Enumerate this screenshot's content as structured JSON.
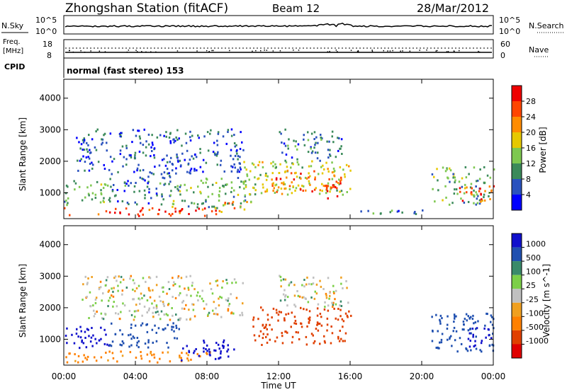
{
  "header": {
    "station": "Zhongshan Station (fitACF)",
    "beam": "Beam 12",
    "date": "28/Mar/2012"
  },
  "top_panels": {
    "nsky_label": "N.Sky",
    "nsearch_label": "N.Search",
    "freq_label_1": "Freq.",
    "freq_label_2": "[MHz]",
    "nave_label": "Nave",
    "cpid_label": "CPID",
    "cpid_value": "normal (fast stereo) 153",
    "noise_ticks_left": [
      "10^5",
      "10^0"
    ],
    "noise_ticks_right": [
      "10^5",
      "10^0"
    ],
    "freq_ticks_left": [
      "18",
      "8"
    ],
    "nave_ticks_right": [
      "60",
      "0"
    ]
  },
  "colors": {
    "power_scale": [
      "#0000ff",
      "#2a52be",
      "#3b8a5a",
      "#7ec850",
      "#e6c800",
      "#ff8c00",
      "#ff4500",
      "#ee0000"
    ],
    "velocity_scale": [
      "#1010cc",
      "#2050b0",
      "#3a8a6a",
      "#7ccf48",
      "#c0c0c0",
      "#f0a020",
      "#ff8000",
      "#e04000",
      "#e00000"
    ]
  },
  "chart_data": [
    {
      "type": "heatmap",
      "title": "Power",
      "xlabel": "Time UT",
      "ylabel": "Slant Range [km]",
      "xticks": [
        "00:00",
        "04:00",
        "08:00",
        "12:00",
        "16:00",
        "20:00",
        "00:00"
      ],
      "yticks": [
        "1000",
        "2000",
        "3000",
        "4000"
      ],
      "ylim": [
        180,
        4600
      ],
      "xlim_hours": [
        0,
        24
      ],
      "colorbar_label": "Power [dB]",
      "colorbar_ticks": [
        "4",
        "8",
        "12",
        "16",
        "20",
        "24",
        "28"
      ],
      "colorbar_range": [
        0,
        32
      ],
      "regions": [
        {
          "t0": 0.0,
          "t1": 8.5,
          "r0": 250,
          "r1": 520,
          "v": 28
        },
        {
          "t0": 8.5,
          "t1": 10.5,
          "r0": 300,
          "r1": 700,
          "v": 22
        },
        {
          "t0": 0.0,
          "t1": 2.5,
          "r0": 600,
          "r1": 1400,
          "v": 12
        },
        {
          "t0": 2.5,
          "t1": 6.0,
          "r0": 600,
          "r1": 1600,
          "v": 8
        },
        {
          "t0": 6.0,
          "t1": 10.5,
          "r0": 500,
          "r1": 1500,
          "v": 12
        },
        {
          "t0": 10.0,
          "t1": 16.0,
          "r0": 900,
          "r1": 2000,
          "v": 16
        },
        {
          "t0": 11.5,
          "t1": 15.5,
          "r0": 1000,
          "r1": 1700,
          "v": 24
        },
        {
          "t0": 14.5,
          "t1": 15.5,
          "r0": 800,
          "r1": 1300,
          "v": 28
        },
        {
          "t0": 12.0,
          "t1": 15.5,
          "r0": 2000,
          "r1": 3000,
          "v": 8
        },
        {
          "t0": 0.5,
          "t1": 10.0,
          "r0": 1600,
          "r1": 3000,
          "v": 6
        },
        {
          "t0": 16.5,
          "t1": 20.0,
          "r0": 300,
          "r1": 500,
          "v": 8
        },
        {
          "t0": 20.5,
          "t1": 24.0,
          "r0": 600,
          "r1": 1800,
          "v": 12
        },
        {
          "t0": 22.0,
          "t1": 24.0,
          "r0": 700,
          "r1": 1200,
          "v": 26
        }
      ]
    },
    {
      "type": "heatmap",
      "title": "Velocity",
      "xlabel": "Time UT",
      "ylabel": "Slant Range [km]",
      "xticks": [
        "00:00",
        "04:00",
        "08:00",
        "12:00",
        "16:00",
        "20:00",
        "00:00"
      ],
      "yticks": [
        "1000",
        "2000",
        "3000",
        "4000"
      ],
      "ylim": [
        180,
        4600
      ],
      "xlim_hours": [
        0,
        24
      ],
      "colorbar_label": "Velocity [m s^-1]",
      "colorbar_ticks": [
        "1000",
        "500",
        "100",
        "25",
        "-25",
        "-100",
        "-500",
        "-1000"
      ],
      "regions": [
        {
          "t0": 0.0,
          "t1": 2.5,
          "r0": 700,
          "r1": 1400,
          "v": 1000
        },
        {
          "t0": 0.0,
          "t1": 8.5,
          "r0": 250,
          "r1": 600,
          "v": -100
        },
        {
          "t0": 6.5,
          "t1": 9.5,
          "r0": 300,
          "r1": 1000,
          "v": 1000
        },
        {
          "t0": 2.5,
          "t1": 6.5,
          "r0": 700,
          "r1": 1500,
          "v": 500
        },
        {
          "t0": 10.5,
          "t1": 16.0,
          "r0": 800,
          "r1": 2000,
          "v": -500
        },
        {
          "t0": 12.0,
          "t1": 16.0,
          "r0": 2000,
          "r1": 3000,
          "v": 0
        },
        {
          "t0": 1.0,
          "t1": 10.0,
          "r0": 1600,
          "r1": 3000,
          "v": 0
        },
        {
          "t0": 20.5,
          "t1": 24.0,
          "r0": 600,
          "r1": 1800,
          "v": 500
        },
        {
          "t0": 22.5,
          "t1": 24.0,
          "r0": 700,
          "r1": 1400,
          "v": 1000
        }
      ]
    }
  ]
}
